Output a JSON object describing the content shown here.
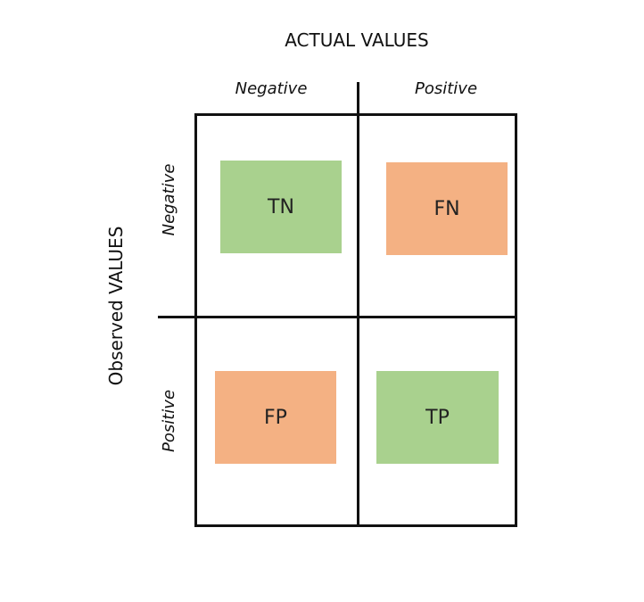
{
  "header": {
    "actual_title": "ACTUAL VALUES",
    "observed_title": "Observed VALUES"
  },
  "columns": {
    "negative": "Negative",
    "positive": "Positive"
  },
  "rows": {
    "negative": "Negative",
    "positive": "Positive"
  },
  "cells": {
    "tn": {
      "label": "TN",
      "color": "#a9d18e"
    },
    "fn": {
      "label": "FN",
      "color": "#f4b183"
    },
    "fp": {
      "label": "FP",
      "color": "#f4b183"
    },
    "tp": {
      "label": "TP",
      "color": "#a9d18e"
    }
  },
  "colors": {
    "line": "#111111",
    "correct": "#a9d18e",
    "error": "#f4b183"
  }
}
